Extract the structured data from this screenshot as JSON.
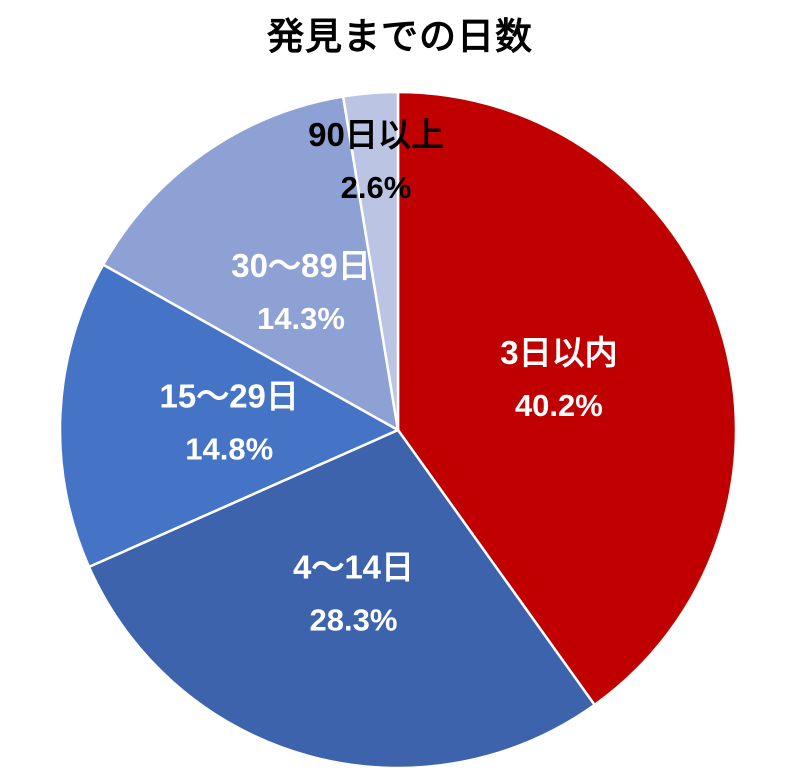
{
  "page": {
    "background_color": "#FFFFFF"
  },
  "chart_data": {
    "type": "pie",
    "title": "発見までの日数",
    "start_angle_deg": 0,
    "direction": "clockwise",
    "legend": "none",
    "slice_border_color": "#FFFFFF",
    "categories": [
      "3日以内",
      "4〜14日",
      "15〜29日",
      "30〜89日",
      "90日以上"
    ],
    "values": [
      40.2,
      28.3,
      14.8,
      14.3,
      2.6
    ],
    "slices": [
      {
        "label": "3日以内",
        "value": 40.2,
        "percent_label": "40.2%",
        "color": "#C00000",
        "label_color": "#FFFFFF",
        "label_radius": 0.5
      },
      {
        "label": "4〜14日",
        "value": 28.3,
        "percent_label": "28.3%",
        "color": "#3D63AC",
        "label_color": "#FFFFFF",
        "label_radius": 0.5
      },
      {
        "label": "15〜29日",
        "value": 14.8,
        "percent_label": "14.8%",
        "color": "#4573C6",
        "label_color": "#FFFFFF",
        "label_radius": 0.5
      },
      {
        "label": "30〜89日",
        "value": 14.3,
        "percent_label": "14.3%",
        "color": "#8EA1D4",
        "label_color": "#FFFFFF",
        "label_radius": 0.5
      },
      {
        "label": "90日以上",
        "value": 2.6,
        "percent_label": "2.6%",
        "color": "#BCC4E4",
        "label_color": "#000000",
        "label_radius": 0.8
      }
    ]
  }
}
